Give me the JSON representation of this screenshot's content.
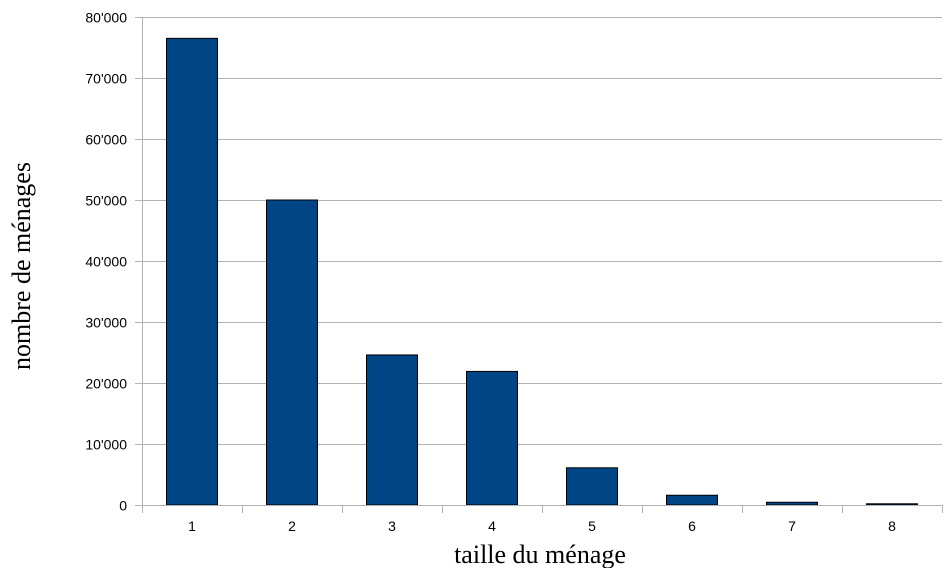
{
  "chart_data": {
    "type": "bar",
    "title": "",
    "xlabel": "taille du ménage",
    "ylabel": "nombre de ménages",
    "categories": [
      "1",
      "2",
      "3",
      "4",
      "5",
      "6",
      "7",
      "8"
    ],
    "values": [
      76500,
      50000,
      24600,
      21900,
      6100,
      1600,
      450,
      200
    ],
    "ylim": [
      0,
      80000
    ],
    "yticks": [
      0,
      10000,
      20000,
      30000,
      40000,
      50000,
      60000,
      70000,
      80000
    ],
    "ytick_labels": [
      "0",
      "10'000",
      "20'000",
      "30'000",
      "40'000",
      "50'000",
      "60'000",
      "70'000",
      "80'000"
    ],
    "grid": "horizontal",
    "legend": "none",
    "colors": {
      "bar": "#004586",
      "bar_edge": "#000000",
      "grid": "#b3b3b3",
      "axis": "#b3b3b3"
    }
  }
}
